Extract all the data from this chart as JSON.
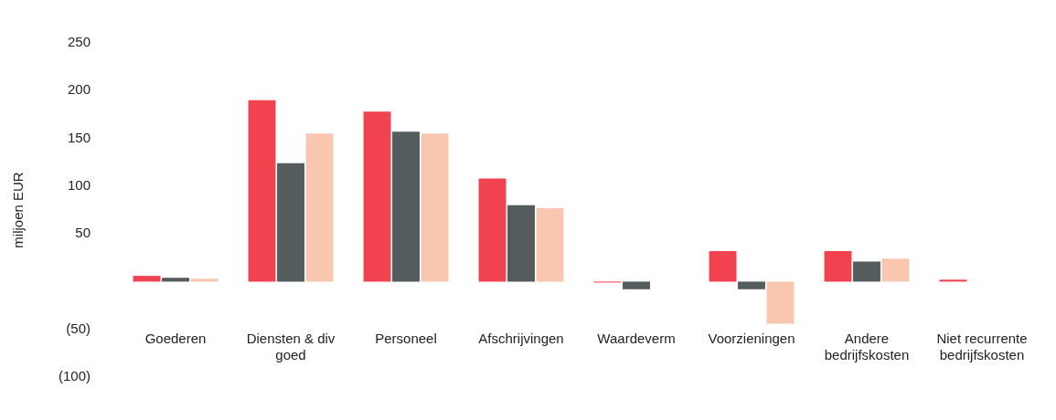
{
  "chart_data": {
    "type": "bar",
    "ylabel": "miljoen EUR",
    "categories": [
      "Goederen",
      "Diensten & div goed",
      "Personeel",
      "Afschrijvingen",
      "Waardeverm",
      "Voorzieningen",
      "Andere bedrijfskosten",
      "Niet recurrente bedrijfskosten"
    ],
    "series": [
      {
        "color": "#f0434f",
        "values": [
          6,
          190,
          178,
          108,
          -1,
          32,
          32,
          2
        ]
      },
      {
        "color": "#545c5e",
        "values": [
          4,
          124,
          157,
          80,
          -8,
          -8,
          21,
          null
        ]
      },
      {
        "color": "#f9c6b0",
        "values": [
          3,
          155,
          155,
          77,
          null,
          -44,
          24,
          null
        ]
      }
    ],
    "ylim": [
      -100,
      250
    ],
    "yticks": [
      250,
      200,
      150,
      100,
      50,
      {
        "value": -50,
        "label": "(50)"
      },
      {
        "value": -100,
        "label": "(100)"
      }
    ],
    "grid": false,
    "legend": false
  }
}
